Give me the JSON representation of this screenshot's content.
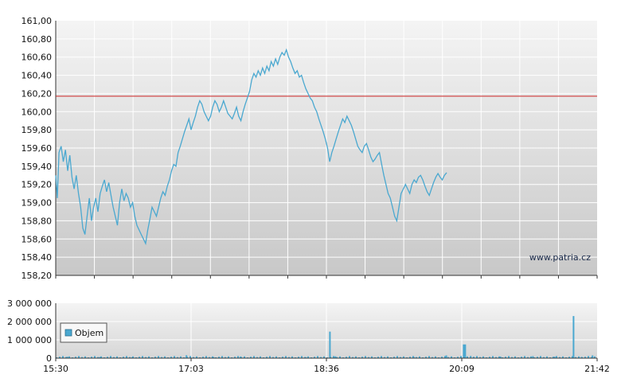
{
  "watermark": "www.patria.cz",
  "chart_data": [
    {
      "type": "line",
      "ylim": [
        158.2,
        161.0
      ],
      "yticks": [
        "161,00",
        "160,80",
        "160,60",
        "160,40",
        "160,20",
        "160,00",
        "159,80",
        "159,60",
        "159,40",
        "159,20",
        "159,00",
        "158,80",
        "158,60",
        "158,40",
        "158,20"
      ],
      "reference_line": {
        "value": 160.17,
        "color": "#cc2222"
      },
      "grid": true,
      "line_color": "#4aa8d0",
      "series": [
        {
          "points": [
            [
              0.0,
              159.3
            ],
            [
              0.003,
              159.05
            ],
            [
              0.006,
              159.55
            ],
            [
              0.01,
              159.62
            ],
            [
              0.014,
              159.45
            ],
            [
              0.018,
              159.58
            ],
            [
              0.022,
              159.35
            ],
            [
              0.026,
              159.52
            ],
            [
              0.03,
              159.28
            ],
            [
              0.034,
              159.15
            ],
            [
              0.038,
              159.3
            ],
            [
              0.042,
              159.1
            ],
            [
              0.046,
              158.95
            ],
            [
              0.05,
              158.72
            ],
            [
              0.054,
              158.65
            ],
            [
              0.058,
              158.85
            ],
            [
              0.062,
              159.05
            ],
            [
              0.066,
              158.8
            ],
            [
              0.07,
              158.95
            ],
            [
              0.074,
              159.05
            ],
            [
              0.078,
              158.9
            ],
            [
              0.082,
              159.1
            ],
            [
              0.086,
              159.18
            ],
            [
              0.09,
              159.25
            ],
            [
              0.094,
              159.12
            ],
            [
              0.098,
              159.22
            ],
            [
              0.102,
              159.08
            ],
            [
              0.106,
              158.95
            ],
            [
              0.11,
              158.85
            ],
            [
              0.114,
              158.75
            ],
            [
              0.118,
              159.0
            ],
            [
              0.122,
              159.15
            ],
            [
              0.126,
              159.02
            ],
            [
              0.13,
              159.1
            ],
            [
              0.134,
              159.05
            ],
            [
              0.138,
              158.95
            ],
            [
              0.142,
              159.0
            ],
            [
              0.146,
              158.85
            ],
            [
              0.15,
              158.75
            ],
            [
              0.154,
              158.7
            ],
            [
              0.158,
              158.65
            ],
            [
              0.162,
              158.6
            ],
            [
              0.166,
              158.55
            ],
            [
              0.17,
              158.7
            ],
            [
              0.174,
              158.82
            ],
            [
              0.178,
              158.95
            ],
            [
              0.182,
              158.9
            ],
            [
              0.186,
              158.85
            ],
            [
              0.19,
              158.95
            ],
            [
              0.194,
              159.05
            ],
            [
              0.198,
              159.12
            ],
            [
              0.202,
              159.08
            ],
            [
              0.206,
              159.18
            ],
            [
              0.21,
              159.25
            ],
            [
              0.214,
              159.35
            ],
            [
              0.218,
              159.42
            ],
            [
              0.222,
              159.4
            ],
            [
              0.226,
              159.55
            ],
            [
              0.23,
              159.62
            ],
            [
              0.234,
              159.7
            ],
            [
              0.238,
              159.78
            ],
            [
              0.242,
              159.85
            ],
            [
              0.246,
              159.92
            ],
            [
              0.25,
              159.8
            ],
            [
              0.254,
              159.88
            ],
            [
              0.258,
              159.95
            ],
            [
              0.262,
              160.05
            ],
            [
              0.266,
              160.12
            ],
            [
              0.27,
              160.08
            ],
            [
              0.274,
              160.0
            ],
            [
              0.278,
              159.95
            ],
            [
              0.282,
              159.9
            ],
            [
              0.286,
              159.95
            ],
            [
              0.29,
              160.05
            ],
            [
              0.294,
              160.12
            ],
            [
              0.298,
              160.08
            ],
            [
              0.302,
              160.0
            ],
            [
              0.306,
              160.05
            ],
            [
              0.31,
              160.12
            ],
            [
              0.314,
              160.05
            ],
            [
              0.318,
              159.98
            ],
            [
              0.322,
              159.95
            ],
            [
              0.326,
              159.92
            ],
            [
              0.33,
              159.98
            ],
            [
              0.334,
              160.05
            ],
            [
              0.338,
              159.95
            ],
            [
              0.342,
              159.9
            ],
            [
              0.346,
              160.0
            ],
            [
              0.35,
              160.08
            ],
            [
              0.354,
              160.15
            ],
            [
              0.358,
              160.22
            ],
            [
              0.362,
              160.35
            ],
            [
              0.366,
              160.42
            ],
            [
              0.37,
              160.38
            ],
            [
              0.374,
              160.45
            ],
            [
              0.378,
              160.4
            ],
            [
              0.382,
              160.48
            ],
            [
              0.386,
              160.42
            ],
            [
              0.39,
              160.5
            ],
            [
              0.394,
              160.45
            ],
            [
              0.398,
              160.55
            ],
            [
              0.402,
              160.5
            ],
            [
              0.406,
              160.58
            ],
            [
              0.41,
              160.52
            ],
            [
              0.414,
              160.6
            ],
            [
              0.418,
              160.65
            ],
            [
              0.422,
              160.62
            ],
            [
              0.426,
              160.68
            ],
            [
              0.43,
              160.6
            ],
            [
              0.434,
              160.55
            ],
            [
              0.438,
              160.48
            ],
            [
              0.442,
              160.42
            ],
            [
              0.446,
              160.45
            ],
            [
              0.45,
              160.38
            ],
            [
              0.454,
              160.4
            ],
            [
              0.458,
              160.32
            ],
            [
              0.462,
              160.25
            ],
            [
              0.466,
              160.2
            ],
            [
              0.47,
              160.15
            ],
            [
              0.474,
              160.12
            ],
            [
              0.478,
              160.05
            ],
            [
              0.482,
              160.0
            ],
            [
              0.486,
              159.92
            ],
            [
              0.49,
              159.85
            ],
            [
              0.494,
              159.78
            ],
            [
              0.498,
              159.7
            ],
            [
              0.502,
              159.6
            ],
            [
              0.506,
              159.45
            ],
            [
              0.51,
              159.55
            ],
            [
              0.514,
              159.62
            ],
            [
              0.518,
              159.7
            ],
            [
              0.522,
              159.78
            ],
            [
              0.526,
              159.85
            ],
            [
              0.53,
              159.92
            ],
            [
              0.534,
              159.88
            ],
            [
              0.538,
              159.95
            ],
            [
              0.542,
              159.9
            ],
            [
              0.546,
              159.85
            ],
            [
              0.55,
              159.78
            ],
            [
              0.554,
              159.7
            ],
            [
              0.558,
              159.62
            ],
            [
              0.562,
              159.58
            ],
            [
              0.566,
              159.55
            ],
            [
              0.57,
              159.62
            ],
            [
              0.574,
              159.65
            ],
            [
              0.578,
              159.58
            ],
            [
              0.582,
              159.5
            ],
            [
              0.586,
              159.45
            ],
            [
              0.59,
              159.48
            ],
            [
              0.594,
              159.52
            ],
            [
              0.598,
              159.55
            ],
            [
              0.602,
              159.42
            ],
            [
              0.606,
              159.3
            ],
            [
              0.61,
              159.2
            ],
            [
              0.614,
              159.1
            ],
            [
              0.618,
              159.05
            ],
            [
              0.622,
              158.95
            ],
            [
              0.626,
              158.85
            ],
            [
              0.63,
              158.8
            ],
            [
              0.634,
              158.95
            ],
            [
              0.638,
              159.1
            ],
            [
              0.642,
              159.15
            ],
            [
              0.646,
              159.2
            ],
            [
              0.65,
              159.15
            ],
            [
              0.654,
              159.1
            ],
            [
              0.658,
              159.2
            ],
            [
              0.662,
              159.25
            ],
            [
              0.666,
              159.22
            ],
            [
              0.67,
              159.28
            ],
            [
              0.674,
              159.3
            ],
            [
              0.678,
              159.25
            ],
            [
              0.682,
              159.18
            ],
            [
              0.686,
              159.12
            ],
            [
              0.69,
              159.08
            ],
            [
              0.694,
              159.15
            ],
            [
              0.698,
              159.22
            ],
            [
              0.702,
              159.28
            ],
            [
              0.706,
              159.32
            ],
            [
              0.71,
              159.28
            ],
            [
              0.714,
              159.25
            ],
            [
              0.718,
              159.3
            ],
            [
              0.722,
              159.33
            ]
          ]
        }
      ]
    },
    {
      "type": "bar",
      "series": [
        {
          "name": "Objem"
        }
      ],
      "ylim": [
        0,
        3000000
      ],
      "yticks": [
        "3 000 000",
        "2 000 000",
        "1 000 000",
        "0"
      ],
      "xticks": [
        "15:30",
        "17:03",
        "18:36",
        "20:09",
        "21:42"
      ],
      "legend": "left",
      "bar_color": "#4aa8d0",
      "spikes": [
        [
          0.02,
          80000
        ],
        [
          0.08,
          60000
        ],
        [
          0.14,
          50000
        ],
        [
          0.2,
          70000
        ],
        [
          0.24,
          160000
        ],
        [
          0.29,
          60000
        ],
        [
          0.34,
          90000
        ],
        [
          0.4,
          40000
        ],
        [
          0.46,
          60000
        ],
        [
          0.505,
          1450000
        ],
        [
          0.515,
          100000
        ],
        [
          0.6,
          80000
        ],
        [
          0.66,
          60000
        ],
        [
          0.72,
          150000
        ],
        [
          0.752,
          750000
        ],
        [
          0.765,
          120000
        ],
        [
          0.82,
          90000
        ],
        [
          0.88,
          110000
        ],
        [
          0.92,
          80000
        ],
        [
          0.955,
          2300000
        ],
        [
          0.97,
          70000
        ],
        [
          0.99,
          150000
        ]
      ]
    }
  ]
}
